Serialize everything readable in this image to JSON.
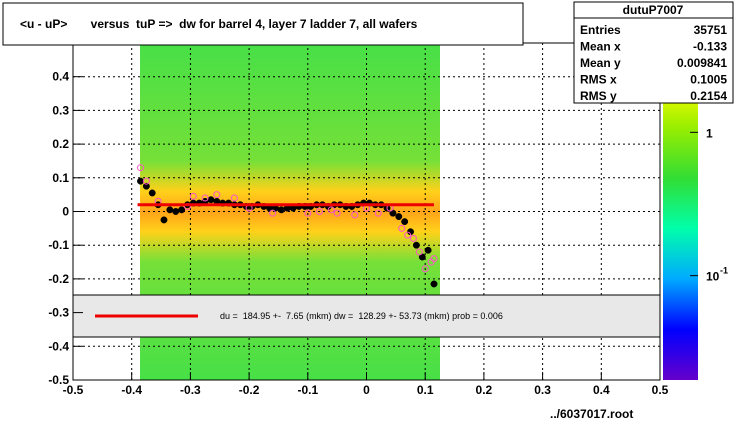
{
  "chart_data": {
    "type": "scatter",
    "title": "<u - uP>       versus  tuP =>  dw for barrel 4, layer 7 ladder 7, all wafers",
    "footer": "../6037017.root",
    "xlim": [
      -0.5,
      0.5
    ],
    "ylim": [
      -0.5,
      0.5
    ],
    "xticks": [
      -0.5,
      -0.4,
      -0.3,
      -0.2,
      -0.1,
      0,
      0.1,
      0.2,
      0.3,
      0.4,
      0.5
    ],
    "yticks": [
      -0.5,
      -0.4,
      -0.3,
      -0.2,
      -0.1,
      0,
      0.1,
      0.2,
      0.3,
      0.4
    ],
    "grid": true,
    "stats": {
      "name": "dutuP7007",
      "rows": [
        {
          "label": "Entries",
          "value": 35751
        },
        {
          "label": "Mean x",
          "value": -0.133
        },
        {
          "label": "Mean y",
          "value": 0.009841
        },
        {
          "label": "RMS x",
          "value": 0.1005
        },
        {
          "label": "RMS y",
          "value": 0.2154
        }
      ]
    },
    "fit_text": "du =  184.95 +-  7.65 (mkm) dw =  128.29 +- 53.73 (mkm) prob = 0.006",
    "fit": {
      "color": "#ee0000",
      "x": [
        -0.39,
        0.115
      ],
      "y": [
        0.02,
        0.02
      ]
    },
    "palette": {
      "zlog": true,
      "zlim": [
        0.0187,
        4.2
      ],
      "ticks": [
        1,
        {
          "value": 0.1,
          "label": "10",
          "exponent": "-1"
        }
      ]
    },
    "series": [
      {
        "color": "#000000",
        "marker": "filled",
        "x": [
          -0.385,
          -0.375,
          -0.365,
          -0.355,
          -0.345,
          -0.335,
          -0.325,
          -0.315,
          -0.305,
          -0.295,
          -0.285,
          -0.275,
          -0.265,
          -0.255,
          -0.245,
          -0.235,
          -0.225,
          -0.215,
          -0.205,
          -0.195,
          -0.185,
          -0.175,
          -0.165,
          -0.155,
          -0.145,
          -0.135,
          -0.125,
          -0.115,
          -0.105,
          -0.095,
          -0.085,
          -0.075,
          -0.065,
          -0.055,
          -0.045,
          -0.035,
          -0.025,
          -0.015,
          -0.005,
          0.005,
          0.015,
          0.025,
          0.035,
          0.045,
          0.055,
          0.065,
          0.075,
          0.085,
          0.095,
          0.105,
          0.115
        ],
        "values": [
          0.09,
          0.075,
          0.055,
          0.02,
          -0.025,
          0.005,
          0.0,
          0.005,
          0.02,
          0.025,
          0.025,
          0.03,
          0.035,
          0.03,
          0.025,
          0.025,
          0.02,
          0.02,
          0.015,
          0.015,
          0.02,
          0.015,
          0.01,
          0.01,
          0.005,
          0.01,
          0.01,
          0.015,
          0.015,
          0.015,
          0.02,
          0.02,
          0.015,
          0.02,
          0.02,
          0.015,
          0.015,
          0.02,
          0.025,
          0.025,
          0.02,
          0.02,
          0.01,
          -0.005,
          -0.015,
          -0.03,
          -0.06,
          -0.1,
          -0.135,
          -0.115,
          -0.215
        ]
      },
      {
        "color": "#ff55cc",
        "marker": "open",
        "x": [
          -0.385,
          -0.375,
          -0.355,
          -0.305,
          -0.295,
          -0.275,
          -0.255,
          -0.225,
          -0.2,
          -0.16,
          -0.1,
          -0.08,
          -0.06,
          -0.05,
          -0.02,
          0.0,
          0.02,
          0.04,
          0.06,
          0.07,
          0.08,
          0.09,
          0.1,
          0.11,
          0.115
        ],
        "values": [
          0.13,
          0.09,
          0.03,
          0.015,
          0.045,
          0.04,
          0.05,
          0.04,
          0.01,
          -0.005,
          -0.005,
          0.0,
          0.005,
          -0.005,
          -0.01,
          0.01,
          -0.005,
          0.01,
          -0.05,
          -0.07,
          -0.08,
          -0.12,
          -0.17,
          -0.15,
          -0.14
        ]
      }
    ]
  }
}
